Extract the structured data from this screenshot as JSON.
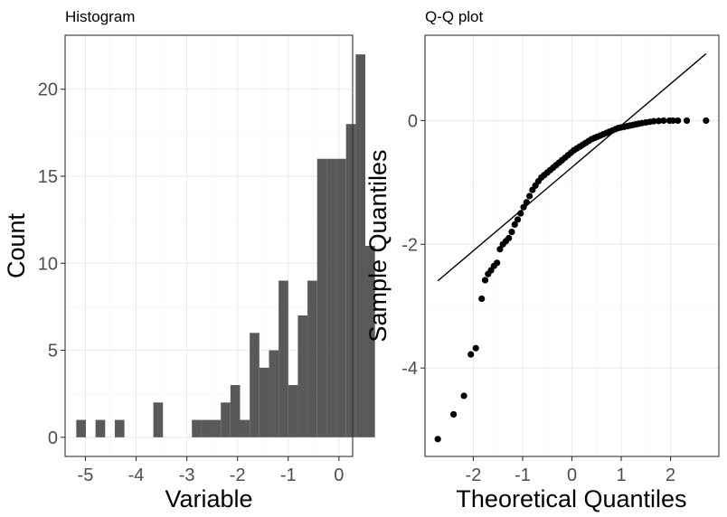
{
  "chart_data": [
    {
      "type": "bar",
      "title": "Histogram",
      "xlabel": "Variable",
      "ylabel": "Count",
      "xlim": [
        -5.4,
        0.27
      ],
      "ylim": [
        -1.1,
        23.1
      ],
      "x_ticks": [
        -5,
        -4,
        -3,
        -2,
        -1,
        0
      ],
      "y_ticks": [
        0,
        5,
        10,
        15,
        20
      ],
      "grid": true,
      "bar_color": "#595959",
      "bin_width": 0.19,
      "bin_edges_start": -5.18,
      "counts": [
        1,
        0,
        1,
        0,
        1,
        0,
        0,
        0,
        2,
        0,
        0,
        0,
        1,
        1,
        1,
        2,
        3,
        1,
        6,
        4,
        5,
        9,
        3,
        7,
        9,
        16,
        16,
        16,
        18,
        22,
        11
      ]
    },
    {
      "type": "scatter",
      "title": "Q-Q plot",
      "xlabel": "Theoretical Quantiles",
      "ylabel": "Sample Quantiles",
      "xlim": [
        -2.98,
        2.98
      ],
      "ylim": [
        -5.43,
        1.38
      ],
      "x_ticks": [
        -2,
        -1,
        0,
        1,
        2
      ],
      "y_ticks": [
        -4,
        -2,
        0
      ],
      "grid": true,
      "point_color": "#000000",
      "reference_line": {
        "slope": 0.675,
        "intercept": -0.755,
        "x_range": [
          -2.72,
          2.72
        ]
      },
      "points": [
        [
          -2.72,
          -5.15
        ],
        [
          -2.4,
          -4.75
        ],
        [
          -2.19,
          -4.45
        ],
        [
          -2.05,
          -3.78
        ],
        [
          -1.95,
          -3.68
        ],
        [
          -1.83,
          -2.88
        ],
        [
          -1.76,
          -2.58
        ],
        [
          -1.7,
          -2.48
        ],
        [
          -1.64,
          -2.42
        ],
        [
          -1.58,
          -2.35
        ],
        [
          -1.52,
          -2.3
        ],
        [
          -1.46,
          -2.08
        ],
        [
          -1.4,
          -2.0
        ],
        [
          -1.34,
          -1.95
        ],
        [
          -1.28,
          -1.9
        ],
        [
          -1.22,
          -1.8
        ],
        [
          -1.16,
          -1.68
        ],
        [
          -1.1,
          -1.6
        ],
        [
          -1.04,
          -1.5
        ],
        [
          -0.98,
          -1.4
        ],
        [
          -0.92,
          -1.32
        ],
        [
          -0.86,
          -1.22
        ],
        [
          -0.8,
          -1.12
        ],
        [
          -0.74,
          -1.05
        ],
        [
          -0.68,
          -0.98
        ],
        [
          -0.62,
          -0.92
        ],
        [
          -0.56,
          -0.88
        ],
        [
          -0.5,
          -0.84
        ],
        [
          -0.44,
          -0.8
        ],
        [
          -0.38,
          -0.76
        ],
        [
          -0.32,
          -0.72
        ],
        [
          -0.26,
          -0.68
        ],
        [
          -0.2,
          -0.64
        ],
        [
          -0.14,
          -0.6
        ],
        [
          -0.08,
          -0.56
        ],
        [
          -0.02,
          -0.52
        ],
        [
          0.04,
          -0.48
        ],
        [
          0.1,
          -0.45
        ],
        [
          0.16,
          -0.42
        ],
        [
          0.22,
          -0.39
        ],
        [
          0.28,
          -0.36
        ],
        [
          0.34,
          -0.33
        ],
        [
          0.4,
          -0.3
        ],
        [
          0.46,
          -0.28
        ],
        [
          0.52,
          -0.26
        ],
        [
          0.58,
          -0.24
        ],
        [
          0.64,
          -0.22
        ],
        [
          0.7,
          -0.2
        ],
        [
          0.76,
          -0.18
        ],
        [
          0.82,
          -0.16
        ],
        [
          0.88,
          -0.14
        ],
        [
          0.94,
          -0.12
        ],
        [
          1.0,
          -0.11
        ],
        [
          1.06,
          -0.1
        ],
        [
          1.12,
          -0.09
        ],
        [
          1.18,
          -0.08
        ],
        [
          1.24,
          -0.07
        ],
        [
          1.3,
          -0.06
        ],
        [
          1.36,
          -0.05
        ],
        [
          1.42,
          -0.04
        ],
        [
          1.5,
          -0.03
        ],
        [
          1.58,
          -0.02
        ],
        [
          1.66,
          -0.01
        ],
        [
          1.76,
          -0.005
        ],
        [
          1.86,
          0.0
        ],
        [
          1.98,
          0.0
        ],
        [
          2.05,
          0.0
        ],
        [
          2.15,
          0.0
        ],
        [
          2.33,
          0.0
        ],
        [
          2.72,
          0.0
        ]
      ]
    }
  ]
}
